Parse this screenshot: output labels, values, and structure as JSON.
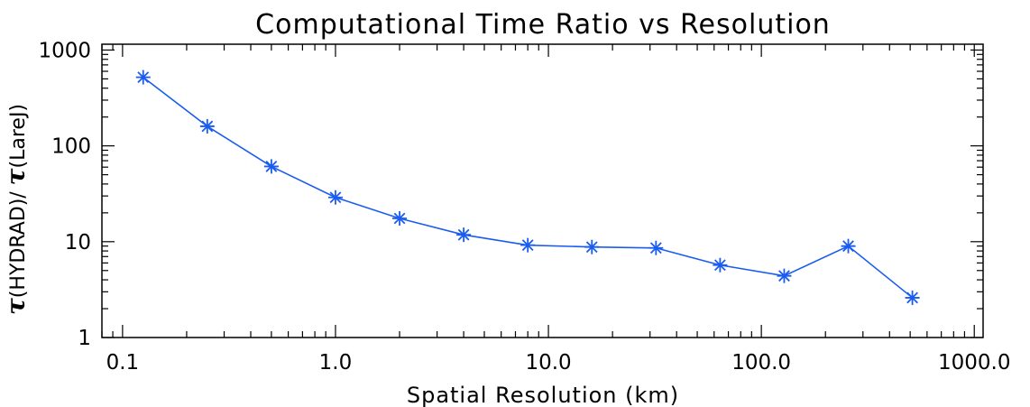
{
  "chart_data": {
    "type": "line",
    "title": "Computational Time Ratio vs Resolution",
    "xlabel": "Spatial Resolution (km)",
    "ylabel": {
      "symbol": "τ",
      "part1": "(HYDRAD)/ ",
      "part2": "(LareJ)"
    },
    "xscale": "log",
    "yscale": "log",
    "xlim": [
      0.08,
      1100
    ],
    "ylim": [
      1,
      1150
    ],
    "xticks": [
      {
        "value": 0.1,
        "label": "0.1"
      },
      {
        "value": 1,
        "label": "1.0"
      },
      {
        "value": 10,
        "label": "10.0"
      },
      {
        "value": 100,
        "label": "100.0"
      },
      {
        "value": 1000,
        "label": "1000.0"
      }
    ],
    "yticks": [
      {
        "value": 1,
        "label": "1"
      },
      {
        "value": 10,
        "label": "10"
      },
      {
        "value": 100,
        "label": "100"
      },
      {
        "value": 1000,
        "label": "1000"
      }
    ],
    "grid": false,
    "color": "#1a5cf0",
    "marker": "asterisk",
    "series": [
      {
        "x": [
          0.125,
          0.25,
          0.5,
          1,
          2,
          4,
          8,
          16,
          32,
          64,
          128,
          256,
          512
        ],
        "y": [
          520,
          160,
          61,
          29,
          17.5,
          11.8,
          9.2,
          8.8,
          8.6,
          5.7,
          4.4,
          9.0,
          2.6
        ]
      }
    ]
  }
}
